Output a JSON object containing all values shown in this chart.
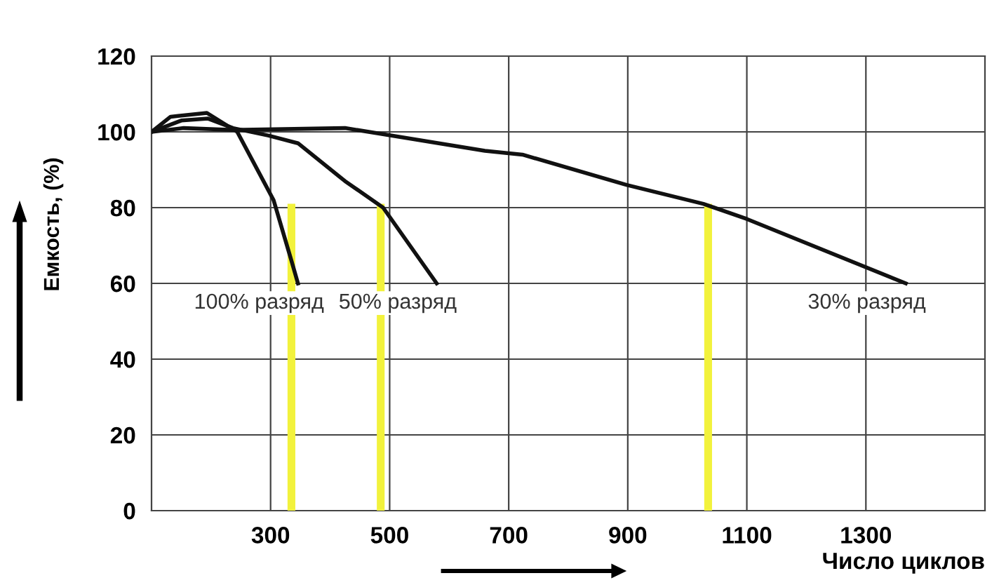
{
  "chart_data": {
    "type": "line",
    "xlabel": "Число циклов",
    "ylabel": "Емкость, (%)",
    "xlim": [
      100,
      1500
    ],
    "xticks": [
      300,
      500,
      700,
      900,
      1100,
      1300
    ],
    "ylim": [
      0,
      120
    ],
    "yticks": [
      0,
      20,
      40,
      60,
      80,
      100,
      120
    ],
    "grid": true,
    "marker": "none",
    "line_style": "solid",
    "series": [
      {
        "color": "#111111",
        "x": [
          100,
          132,
          193,
          244,
          305,
          335,
          346
        ],
        "values": [
          100,
          104,
          105,
          100,
          82,
          66,
          60
        ]
      },
      {
        "color": "#111111",
        "x": [
          100,
          150,
          195,
          237,
          297,
          346,
          425,
          489,
          579
        ],
        "values": [
          100,
          103,
          103.5,
          101,
          99,
          97,
          87,
          80,
          60
        ]
      },
      {
        "color": "#111111",
        "x": [
          100,
          154,
          237,
          425,
          485,
          660,
          723,
          898,
          1027,
          1100,
          1367
        ],
        "values": [
          100,
          101,
          100.5,
          101,
          99.5,
          95,
          94,
          86,
          81,
          77,
          60
        ]
      },
      {
        "color": "#f2f23c",
        "x": [
          335,
          335
        ],
        "values": [
          0,
          80
        ]
      },
      {
        "color": "#f2f23c",
        "x": [
          485,
          485
        ],
        "values": [
          0,
          80
        ]
      },
      {
        "color": "#f2f23c",
        "x": [
          1035,
          1035
        ],
        "values": [
          0,
          80
        ]
      }
    ],
    "annotations": [
      "100% разряд",
      "50% разряд",
      "30% разряд"
    ]
  }
}
